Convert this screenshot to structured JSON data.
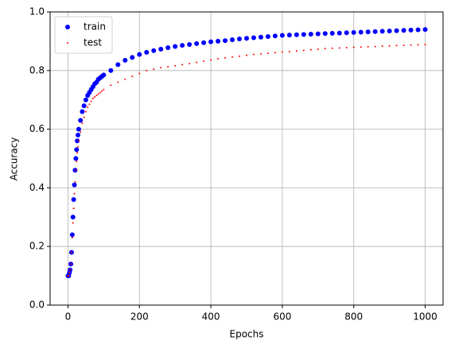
{
  "chart_data": {
    "type": "scatter",
    "xlabel": "Epochs",
    "ylabel": "Accuracy",
    "x": [
      0,
      2,
      4,
      6,
      8,
      10,
      12,
      14,
      16,
      18,
      20,
      22,
      24,
      26,
      28,
      30,
      35,
      40,
      45,
      50,
      55,
      60,
      65,
      70,
      75,
      80,
      85,
      90,
      95,
      100,
      120,
      140,
      160,
      180,
      200,
      220,
      240,
      260,
      280,
      300,
      320,
      340,
      360,
      380,
      400,
      420,
      440,
      460,
      480,
      500,
      520,
      540,
      560,
      580,
      600,
      620,
      640,
      660,
      680,
      700,
      720,
      740,
      760,
      780,
      800,
      820,
      840,
      860,
      880,
      900,
      920,
      940,
      960,
      980,
      1000
    ],
    "series": [
      {
        "name": "train",
        "color": "#0000ff",
        "values": [
          0.1,
          0.1,
          0.11,
          0.12,
          0.14,
          0.18,
          0.24,
          0.3,
          0.36,
          0.41,
          0.46,
          0.5,
          0.53,
          0.56,
          0.58,
          0.6,
          0.63,
          0.66,
          0.68,
          0.7,
          0.715,
          0.725,
          0.735,
          0.745,
          0.755,
          0.76,
          0.77,
          0.775,
          0.78,
          0.785,
          0.8,
          0.82,
          0.835,
          0.845,
          0.855,
          0.862,
          0.868,
          0.873,
          0.878,
          0.882,
          0.886,
          0.889,
          0.892,
          0.895,
          0.898,
          0.9,
          0.902,
          0.905,
          0.908,
          0.91,
          0.912,
          0.914,
          0.916,
          0.918,
          0.92,
          0.921,
          0.922,
          0.923,
          0.924,
          0.925,
          0.926,
          0.927,
          0.928,
          0.929,
          0.93,
          0.931,
          0.932,
          0.933,
          0.934,
          0.935,
          0.936,
          0.937,
          0.938,
          0.939,
          0.94
        ]
      },
      {
        "name": "test",
        "color": "#ff0000",
        "values": [
          0.1,
          0.1,
          0.11,
          0.12,
          0.14,
          0.18,
          0.23,
          0.28,
          0.33,
          0.38,
          0.42,
          0.46,
          0.49,
          0.52,
          0.54,
          0.56,
          0.59,
          0.62,
          0.64,
          0.66,
          0.675,
          0.685,
          0.695,
          0.705,
          0.71,
          0.715,
          0.72,
          0.725,
          0.73,
          0.735,
          0.75,
          0.76,
          0.77,
          0.78,
          0.79,
          0.8,
          0.805,
          0.81,
          0.813,
          0.816,
          0.82,
          0.824,
          0.828,
          0.832,
          0.836,
          0.84,
          0.843,
          0.846,
          0.849,
          0.852,
          0.855,
          0.857,
          0.859,
          0.861,
          0.863,
          0.865,
          0.867,
          0.869,
          0.871,
          0.873,
          0.875,
          0.876,
          0.877,
          0.878,
          0.879,
          0.88,
          0.881,
          0.882,
          0.883,
          0.884,
          0.885,
          0.886,
          0.887,
          0.888,
          0.889
        ]
      }
    ],
    "xlim": [
      -50,
      1050
    ],
    "ylim": [
      0,
      1
    ],
    "xticks": [
      0,
      200,
      400,
      600,
      800,
      1000
    ],
    "yticks": [
      {
        "value": 0,
        "label": "0.0"
      },
      {
        "value": 0.2,
        "label": "0.2"
      },
      {
        "value": 0.4,
        "label": "0.4"
      },
      {
        "value": 0.6,
        "label": "0.6"
      },
      {
        "value": 0.8,
        "label": "0.8"
      },
      {
        "value": 1,
        "label": "1.0"
      }
    ],
    "grid": true,
    "legend": "upper left"
  }
}
